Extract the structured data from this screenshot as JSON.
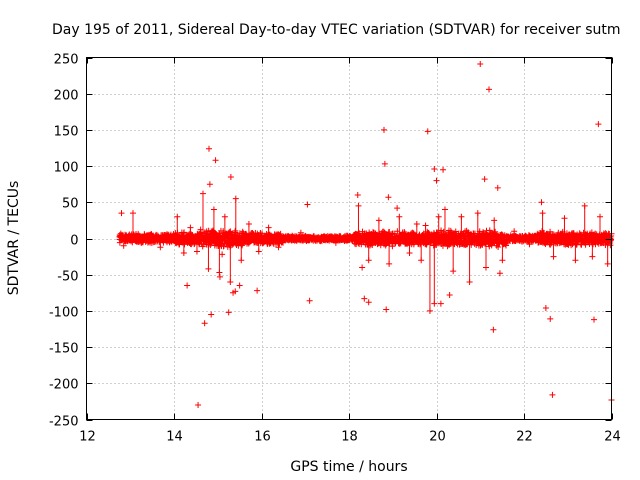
{
  "chart_data": {
    "type": "scatter",
    "title": "Day 195 of 2011, Sidereal Day-to-day VTEC variation (SDTVAR) for receiver sutm",
    "xlabel": "GPS time / hours",
    "ylabel": "SDTVAR / TECUs",
    "xlim": [
      12,
      24
    ],
    "ylim": [
      -250,
      250
    ],
    "xticks": [
      12,
      14,
      16,
      18,
      20,
      22,
      24
    ],
    "yticks": [
      -250,
      -200,
      -150,
      -100,
      -50,
      0,
      50,
      100,
      150,
      200,
      250
    ],
    "grid": true,
    "marker": "+",
    "color": "#ff0000",
    "series": [
      {
        "name": "SDTVAR",
        "x": [
          12.8,
          12.85,
          14.3,
          14.55,
          14.7,
          14.8,
          14.82,
          14.85,
          14.95,
          15.05,
          15.1,
          15.25,
          15.3,
          15.35,
          15.4,
          15.45,
          15.5,
          15.9,
          17.05,
          17.1,
          18.2,
          18.3,
          18.35,
          18.45,
          18.8,
          18.82,
          18.85,
          18.9,
          19.1,
          19.8,
          19.95,
          20.0,
          20.1,
          20.15,
          20.3,
          21.0,
          21.1,
          21.2,
          21.3,
          21.4,
          21.45,
          22.4,
          22.5,
          22.6,
          22.65,
          23.6,
          23.7,
          24.0
        ],
        "y": [
          35,
          -10,
          -65,
          -230,
          -117,
          124,
          75,
          -105,
          108,
          -53,
          -22,
          -102,
          85,
          -75,
          -73,
          5,
          -65,
          -72,
          47,
          -86,
          60,
          -40,
          -83,
          -88,
          150,
          103,
          -98,
          57,
          42,
          148,
          96,
          80,
          -90,
          95,
          -78,
          241,
          82,
          206,
          -126,
          70,
          -48,
          50,
          -96,
          -111,
          -216,
          -112,
          158,
          -223
        ],
        "bands": [
          {
            "start": 12.75,
            "end": 14.0,
            "halfwidth": 7,
            "spikes": [
              35,
              -12
            ]
          },
          {
            "start": 14.0,
            "end": 14.6,
            "halfwidth": 9,
            "spikes": [
              30,
              -20,
              15,
              -18
            ]
          },
          {
            "start": 14.6,
            "end": 15.6,
            "halfwidth": 13,
            "spikes": [
              62,
              -42,
              40,
              -47,
              30,
              -60,
              55,
              -30
            ]
          },
          {
            "start": 15.6,
            "end": 16.5,
            "halfwidth": 9,
            "spikes": [
              20,
              -18,
              15,
              -12
            ]
          },
          {
            "start": 16.5,
            "end": 18.1,
            "halfwidth": 4,
            "spikes": [
              8,
              -6
            ]
          },
          {
            "start": 18.1,
            "end": 19.5,
            "halfwidth": 11,
            "spikes": [
              45,
              -30,
              25,
              -35,
              30,
              -20
            ]
          },
          {
            "start": 19.5,
            "end": 20.1,
            "halfwidth": 10,
            "spikes": [
              20,
              -30,
              18,
              -100,
              -90,
              30
            ]
          },
          {
            "start": 20.1,
            "end": 21.6,
            "halfwidth": 12,
            "spikes": [
              40,
              -45,
              30,
              -60,
              35,
              -40,
              25,
              -30
            ]
          },
          {
            "start": 21.6,
            "end": 22.3,
            "halfwidth": 5,
            "spikes": [
              10,
              -8
            ]
          },
          {
            "start": 22.3,
            "end": 23.3,
            "halfwidth": 11,
            "spikes": [
              35,
              -25,
              28,
              -30
            ]
          },
          {
            "start": 23.3,
            "end": 24.0,
            "halfwidth": 10,
            "spikes": [
              45,
              -25,
              30,
              -35
            ]
          }
        ]
      }
    ]
  }
}
